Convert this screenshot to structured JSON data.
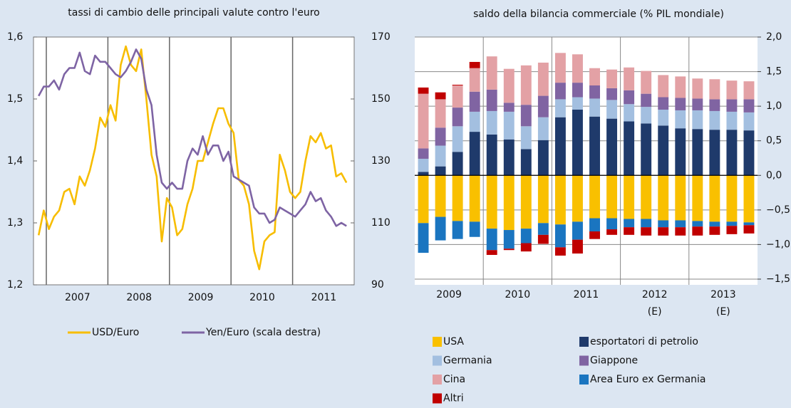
{
  "chart_data": [
    {
      "type": "line",
      "title": "tassi di cambio delle principali valute contro l'euro",
      "categories": [
        null,
        null,
        null,
        null,
        null,
        null,
        null,
        null,
        "2007",
        null,
        null,
        null,
        null,
        null,
        null,
        null,
        null,
        null,
        null,
        null,
        "2008",
        null,
        null,
        null,
        null,
        null,
        null,
        null,
        null,
        null,
        null,
        null,
        "2009",
        null,
        null,
        null,
        null,
        null,
        null,
        null,
        null,
        null,
        null,
        null,
        "2010",
        null,
        null,
        null,
        null,
        null,
        null,
        null,
        null,
        null,
        null,
        null,
        "2011",
        null,
        null,
        null,
        null
      ],
      "series": [
        {
          "name": "USD/Euro",
          "color": "#f7bd00",
          "values": [
            1.28,
            1.32,
            1.29,
            1.31,
            1.32,
            1.35,
            1.355,
            1.33,
            1.375,
            1.36,
            1.385,
            1.42,
            1.47,
            1.455,
            1.49,
            1.465,
            1.555,
            1.585,
            1.555,
            1.545,
            1.58,
            1.5,
            1.41,
            1.375,
            1.27,
            1.34,
            1.325,
            1.28,
            1.29,
            1.33,
            1.355,
            1.4,
            1.4,
            1.43,
            1.46,
            1.485,
            1.485,
            1.46,
            1.445,
            1.37,
            1.36,
            1.33,
            1.255,
            1.225,
            1.27,
            1.28,
            1.285,
            1.41,
            1.385,
            1.35,
            1.34,
            1.35,
            1.4,
            1.44,
            1.43,
            1.445,
            1.42,
            1.425,
            1.375,
            1.38,
            1.365
          ]
        },
        {
          "name": "Yen/Euro (scala destra)",
          "color": "#7e64a4",
          "axis": "y2",
          "values": [
            151,
            154,
            154,
            156,
            153,
            158,
            160,
            160,
            165,
            159,
            158,
            164,
            162,
            162,
            160,
            158,
            157,
            159,
            162,
            166,
            163,
            153,
            148,
            132,
            123,
            121,
            123,
            121,
            121,
            130,
            134,
            132,
            138,
            132,
            135,
            135,
            130,
            133,
            125,
            124,
            123,
            122,
            115,
            113,
            113,
            110,
            111,
            115,
            114,
            113,
            112,
            114,
            116,
            120,
            117,
            118,
            114,
            112,
            109,
            110,
            109
          ]
        }
      ],
      "ylim": [
        1.2,
        1.6
      ],
      "yticks": [
        {
          "value": 1.2,
          "label": "1,2"
        },
        {
          "value": 1.3,
          "label": "1,3"
        },
        {
          "value": 1.4,
          "label": "1,4"
        },
        {
          "value": 1.5,
          "label": "1,5"
        },
        {
          "value": 1.6,
          "label": "1,6"
        }
      ],
      "y2lim": [
        90,
        170
      ],
      "y2ticks": [
        90,
        110,
        130,
        150,
        170
      ],
      "grid": "x",
      "legend": "bottom"
    },
    {
      "type": "bar",
      "title": "saldo della bilancia commerciale (% PIL mondiale)",
      "categories": [
        null,
        null,
        null,
        null,
        null,
        null,
        null,
        null,
        null,
        null,
        null,
        null,
        null,
        null,
        null,
        null,
        null,
        null,
        null,
        null
      ],
      "groups": [
        [
          "2009"
        ],
        [
          "2010"
        ],
        [
          "2011"
        ],
        [
          "2012",
          "(E)"
        ],
        [
          "2013",
          "(E)"
        ]
      ],
      "series": [
        {
          "name": "USA",
          "color": "#f9c000",
          "values": [
            -0.69,
            -0.6,
            -0.66,
            -0.67,
            -0.77,
            -0.79,
            -0.77,
            -0.69,
            -0.71,
            -0.67,
            -0.62,
            -0.62,
            -0.63,
            -0.63,
            -0.65,
            -0.65,
            -0.66,
            -0.67,
            -0.67,
            -0.68
          ]
        },
        {
          "name": "esportatori di petrolio",
          "color": "#1f3a6b",
          "values": [
            0.05,
            0.13,
            0.34,
            0.63,
            0.59,
            0.52,
            0.38,
            0.51,
            0.84,
            0.95,
            0.85,
            0.82,
            0.78,
            0.75,
            0.72,
            0.68,
            0.67,
            0.66,
            0.66,
            0.65
          ]
        },
        {
          "name": "Germania",
          "color": "#a3bfe0",
          "values": [
            0.19,
            0.3,
            0.37,
            0.29,
            0.34,
            0.4,
            0.33,
            0.33,
            0.26,
            0.18,
            0.26,
            0.27,
            0.25,
            0.24,
            0.23,
            0.26,
            0.27,
            0.27,
            0.26,
            0.26
          ]
        },
        {
          "name": "Giappone",
          "color": "#8064a2",
          "values": [
            0.15,
            0.26,
            0.27,
            0.29,
            0.31,
            0.13,
            0.31,
            0.31,
            0.24,
            0.21,
            0.19,
            0.17,
            0.2,
            0.19,
            0.18,
            0.18,
            0.17,
            0.17,
            0.18,
            0.19
          ]
        },
        {
          "name": "Cina",
          "color": "#e3a1a5",
          "values": [
            0.79,
            0.41,
            0.32,
            0.34,
            0.48,
            0.49,
            0.57,
            0.48,
            0.43,
            0.41,
            0.25,
            0.27,
            0.33,
            0.33,
            0.32,
            0.31,
            0.29,
            0.29,
            0.27,
            0.26
          ]
        },
        {
          "name": "Area Euro ex Germania",
          "color": "#1a75c0",
          "values": [
            -0.43,
            -0.34,
            -0.26,
            -0.22,
            -0.31,
            -0.27,
            -0.21,
            -0.17,
            -0.33,
            -0.26,
            -0.19,
            -0.16,
            -0.12,
            -0.12,
            -0.1,
            -0.1,
            -0.08,
            -0.07,
            -0.06,
            -0.04
          ]
        },
        {
          "name": "Altri",
          "color": "#c00000",
          "values": [
            0.09,
            0.1,
            0.01,
            0.09,
            -0.07,
            -0.02,
            -0.12,
            -0.13,
            -0.12,
            -0.2,
            -0.11,
            -0.08,
            -0.11,
            -0.12,
            -0.12,
            -0.12,
            -0.13,
            -0.12,
            -0.12,
            -0.12
          ]
        }
      ],
      "ylim": [
        -1.5,
        2.0
      ],
      "yticks": [
        {
          "value": -1.5,
          "label": "−1,5"
        },
        {
          "value": -1.0,
          "label": "−1,0"
        },
        {
          "value": -0.5,
          "label": "−0,5"
        },
        {
          "value": 0,
          "label": "0,0"
        },
        {
          "value": 0.5,
          "label": "0,5"
        },
        {
          "value": 1.0,
          "label": "1,0"
        },
        {
          "value": 1.5,
          "label": "1,5"
        },
        {
          "value": 2.0,
          "label": "2,0"
        }
      ],
      "grid": "both",
      "legend": "bottom"
    }
  ]
}
